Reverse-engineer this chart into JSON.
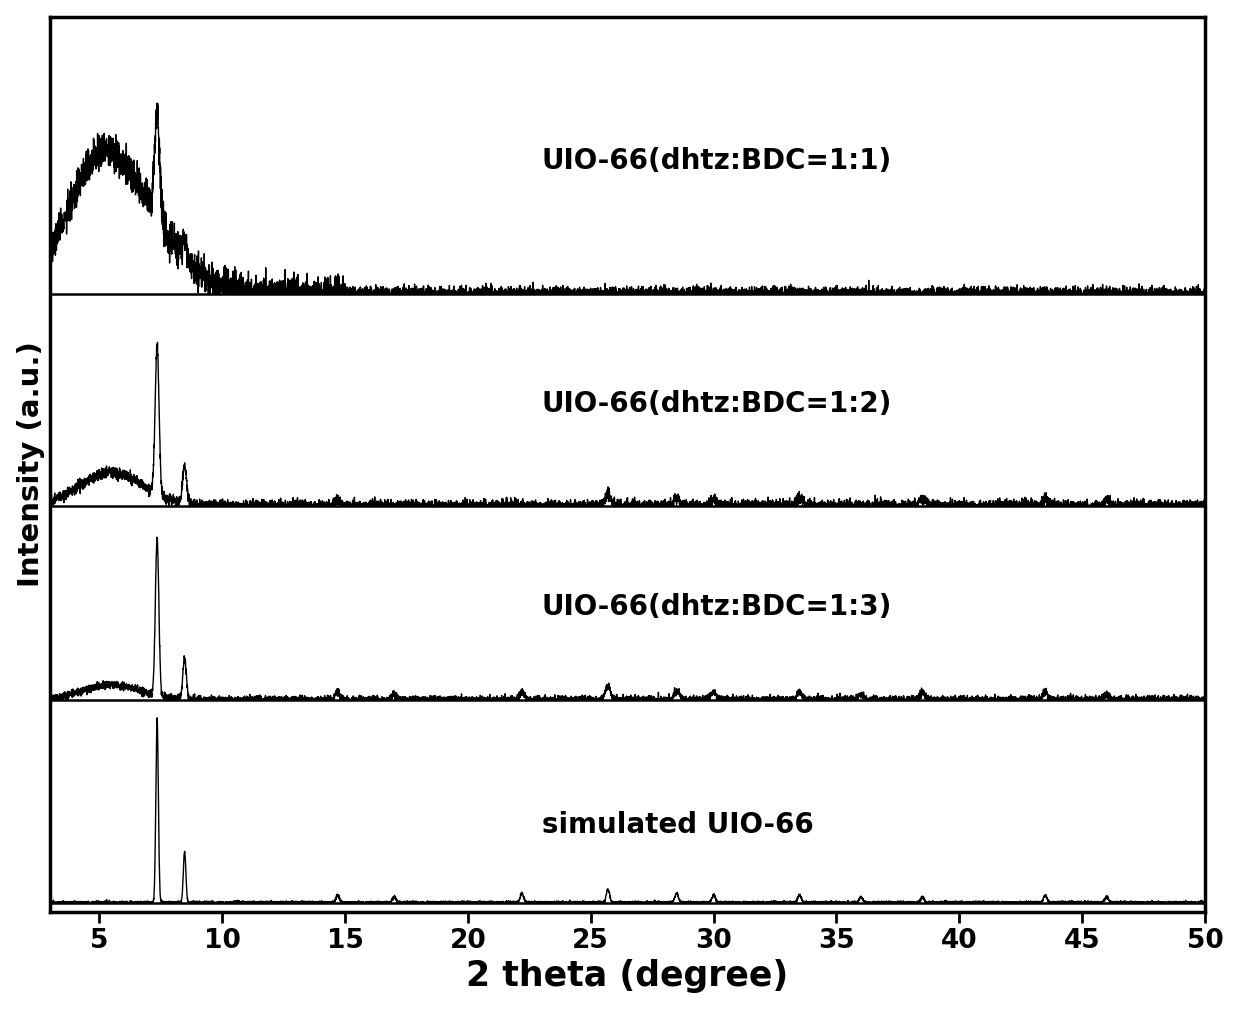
{
  "title": "",
  "xlabel": "2 theta (degree)",
  "ylabel": "Intensity (a.u.)",
  "xlim": [
    3,
    50
  ],
  "ylim": [
    -0.05,
    4.8
  ],
  "xticks": [
    5,
    10,
    15,
    20,
    25,
    30,
    35,
    40,
    45,
    50
  ],
  "series_labels": [
    "UIO-66(dhtz:BDC=1:1)",
    "UIO-66(dhtz:BDC=1:2)",
    "UIO-66(dhtz:BDC=1:3)",
    "simulated UIO-66"
  ],
  "offsets": [
    3.3,
    2.15,
    1.1,
    0.0
  ],
  "background_color": "#ffffff",
  "line_color": "#000000",
  "label_fontsize": 20,
  "tick_fontsize": 19,
  "xlabel_fontsize": 25,
  "ylabel_fontsize": 21,
  "linewidth": 1.0
}
